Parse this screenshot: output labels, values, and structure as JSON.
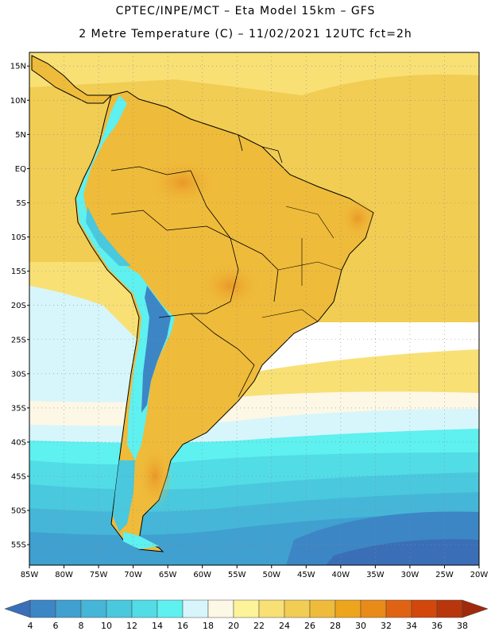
{
  "header": {
    "line1": "CPTEC/INPE/MCT –  Eta Model 15km – GFS",
    "line2": "2 Metre Temperature (C) – 11/02/2021 12UTC fct=2h"
  },
  "map": {
    "lon_range": [
      -85,
      -20
    ],
    "lat_range": [
      -58,
      17
    ],
    "lat_ticks": [
      "15N",
      "10N",
      "5N",
      "EQ",
      "5S",
      "10S",
      "15S",
      "20S",
      "25S",
      "30S",
      "35S",
      "40S",
      "45S",
      "50S",
      "55S"
    ],
    "lon_ticks": [
      "85W",
      "80W",
      "75W",
      "70W",
      "65W",
      "60W",
      "55W",
      "50W",
      "45W",
      "40W",
      "35W",
      "30W",
      "25W",
      "20W"
    ],
    "grid": true
  },
  "colorbar": {
    "labels": [
      "4",
      "6",
      "8",
      "10",
      "12",
      "14",
      "16",
      "18",
      "20",
      "22",
      "24",
      "26",
      "28",
      "30",
      "32",
      "34",
      "36",
      "38"
    ],
    "colors": [
      "#3a6fb8",
      "#3d86c6",
      "#40a0cf",
      "#45b6d8",
      "#4ac8de",
      "#52dce6",
      "#5ff0f0",
      "#d6f6fb",
      "#fdf7e6",
      "#fcf39a",
      "#f8e075",
      "#f1cd54",
      "#efbb3a",
      "#eda51d",
      "#e98b19",
      "#e06314",
      "#d1470c",
      "#b8360c",
      "#a02a0c"
    ]
  },
  "chart_data": {
    "type": "heatmap",
    "variable": "2 Metre Temperature (C)",
    "model": "Eta Model 15km – GFS",
    "date": "11/02/2021 12UTC",
    "forecast": "fct=2h",
    "x_axis": {
      "range": [
        "85W",
        "20W"
      ]
    },
    "y_axis": {
      "range": [
        "58S",
        "17N"
      ]
    },
    "color_scale": {
      "min": 4,
      "max": 38,
      "step": 2
    }
  }
}
